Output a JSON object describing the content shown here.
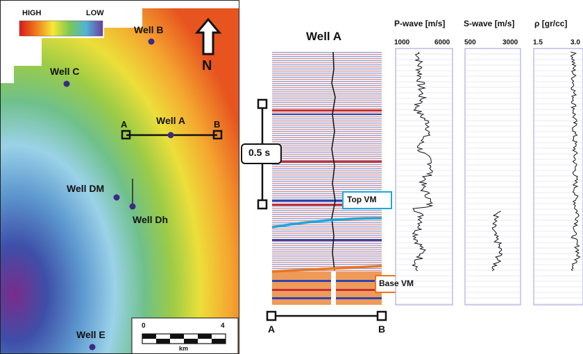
{
  "map": {
    "legend": {
      "high": "HIGH",
      "low": "LOW"
    },
    "north": "N",
    "wells": [
      {
        "name": "Well B"
      },
      {
        "name": "Well C"
      },
      {
        "name": "Well A"
      },
      {
        "name": "Well DM"
      },
      {
        "name": "Well Dh"
      },
      {
        "name": "Well E"
      }
    ],
    "section_ends": {
      "a": "A",
      "b": "B"
    },
    "scale_bar": {
      "zero": "0",
      "four": "4",
      "unit": "km"
    }
  },
  "section": {
    "title": "Well A",
    "time_bar": "0.5 s",
    "top_horizon": "Top VM",
    "base_horizon": "Base VM",
    "end_a": "A",
    "end_b": "B",
    "colors": {
      "top_vm": "#1ea6d8",
      "base_vm": "#e8761c"
    }
  },
  "logs": [
    {
      "title": "P-wave [m/s]",
      "min": "1000",
      "max": "6000"
    },
    {
      "title": "S-wave [m/s]",
      "min": "500",
      "max": "3000"
    },
    {
      "title": "ρ [gr/cc]",
      "min": "1.5",
      "max": "3.0"
    }
  ]
}
